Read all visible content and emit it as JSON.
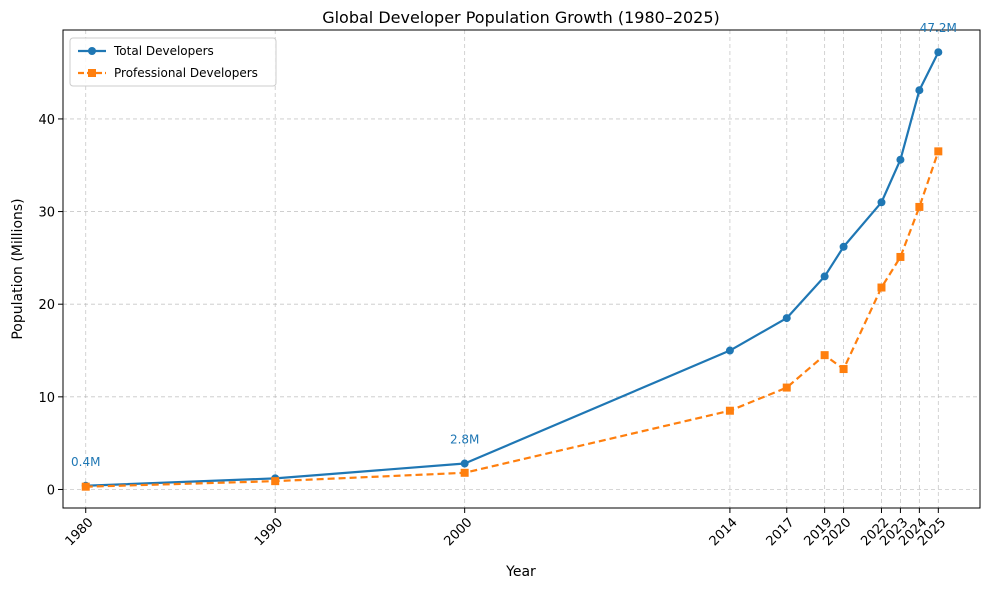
{
  "chart_data": {
    "type": "line",
    "title": "Global Developer Population Growth (1980–2025)",
    "xlabel": "Year",
    "ylabel": "Population (Millions)",
    "xlim": [
      1978.8,
      2027.2
    ],
    "ylim": [
      -2.0,
      49.6
    ],
    "x": [
      1980,
      1990,
      2000,
      2014,
      2017,
      2019,
      2020,
      2022,
      2023,
      2024,
      2025
    ],
    "xticks": [
      "1980",
      "1990",
      "2000",
      "2014",
      "2017",
      "2019",
      "2020",
      "2022",
      "2023",
      "2024",
      "2025"
    ],
    "yticks": [
      0,
      10,
      20,
      30,
      40
    ],
    "yticks_labels": [
      "0",
      "10",
      "20",
      "30",
      "40"
    ],
    "grid": true,
    "legend_position": "top-left",
    "series": [
      {
        "name": "Total Developers",
        "color": "#1f77b4",
        "marker": "circle",
        "linestyle": "solid",
        "values": [
          0.4,
          1.2,
          2.8,
          15.0,
          18.5,
          23.0,
          26.2,
          31.0,
          35.6,
          43.1,
          47.2
        ]
      },
      {
        "name": "Professional Developers",
        "color": "#ff7f0e",
        "marker": "square",
        "linestyle": "dashed",
        "values": [
          0.3,
          0.9,
          1.8,
          8.5,
          11.0,
          14.5,
          13.0,
          21.8,
          25.1,
          30.5,
          36.5
        ]
      }
    ],
    "annotations": [
      {
        "text": "0.4M",
        "x": 1980,
        "y": 0.4
      },
      {
        "text": "2.8M",
        "x": 2000,
        "y": 2.8
      },
      {
        "text": "47.2M",
        "x": 2025,
        "y": 47.2
      }
    ]
  }
}
